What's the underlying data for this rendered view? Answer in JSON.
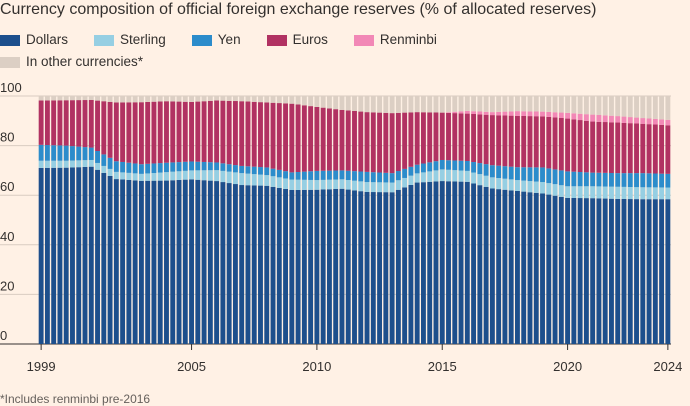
{
  "title": "Currency composition of official foreign exchange reserves (% of allocated reserves)",
  "footnote": "*Includes renminbi pre-2016",
  "colors": {
    "background": "#FFF1E5",
    "grid": "#D9CCC1",
    "axis": "#33302E",
    "Dollars": "#1D4F8C",
    "Sterling": "#96CFE3",
    "Yen": "#2C8CCB",
    "Euros": "#B13262",
    "Renminbi": "#F288B6",
    "In other currencies*": "#DCCFC4"
  },
  "legend": {
    "row1": [
      "Dollars",
      "Sterling",
      "Yen",
      "Euros",
      "Renminbi"
    ],
    "row2": [
      "In other currencies*"
    ]
  },
  "chart_data": {
    "type": "bar",
    "stacked": true,
    "frequency": "quarterly",
    "start": "1999 Q1",
    "end": "2024 Q1",
    "x_ticks": [
      "1999",
      "2005",
      "2010",
      "2015",
      "2020",
      "2024"
    ],
    "y_ticks": [
      0,
      20,
      40,
      60,
      80,
      100
    ],
    "ylim": [
      0,
      100
    ],
    "grid": true,
    "legend_position": "top",
    "yearly": {
      "years": [
        1999,
        2000,
        2001,
        2002,
        2003,
        2004,
        2005,
        2006,
        2007,
        2008,
        2009,
        2010,
        2011,
        2012,
        2013,
        2014,
        2015,
        2016,
        2017,
        2018,
        2019,
        2020,
        2021,
        2022,
        2023,
        2024
      ],
      "Dollars": [
        71.0,
        71.1,
        71.5,
        66.5,
        65.8,
        65.9,
        66.4,
        65.7,
        64.1,
        63.8,
        62.1,
        62.2,
        62.6,
        61.3,
        61.2,
        65.1,
        65.7,
        65.4,
        62.7,
        61.7,
        60.7,
        58.9,
        58.8,
        58.5,
        58.4,
        58.4
      ],
      "Sterling": [
        2.9,
        2.8,
        2.7,
        2.9,
        2.8,
        3.4,
        3.6,
        4.4,
        4.8,
        4.3,
        4.2,
        3.9,
        3.8,
        4.0,
        3.9,
        3.7,
        4.7,
        4.4,
        4.5,
        4.4,
        4.6,
        4.7,
        4.8,
        4.9,
        4.8,
        4.7
      ],
      "Yen": [
        6.4,
        6.1,
        5.0,
        4.3,
        3.9,
        3.8,
        3.6,
        3.1,
        2.9,
        3.1,
        2.9,
        3.7,
        3.6,
        4.1,
        3.8,
        3.5,
        3.8,
        4.0,
        4.9,
        5.2,
        5.9,
        6.0,
        5.5,
        5.5,
        5.7,
        5.5
      ],
      "Euros": [
        17.9,
        18.3,
        19.2,
        23.7,
        25.0,
        24.8,
        24.0,
        25.0,
        26.1,
        26.2,
        27.7,
        25.8,
        24.4,
        24.1,
        24.2,
        21.2,
        19.1,
        19.1,
        20.2,
        20.7,
        20.6,
        21.3,
        20.6,
        20.4,
        19.9,
        19.6
      ],
      "Renminbi": [
        0,
        0,
        0,
        0,
        0,
        0,
        0,
        0,
        0,
        0,
        0,
        0,
        0,
        0,
        0,
        0,
        0,
        1.1,
        1.2,
        1.9,
        1.9,
        2.3,
        2.8,
        2.6,
        2.3,
        2.2
      ]
    }
  }
}
